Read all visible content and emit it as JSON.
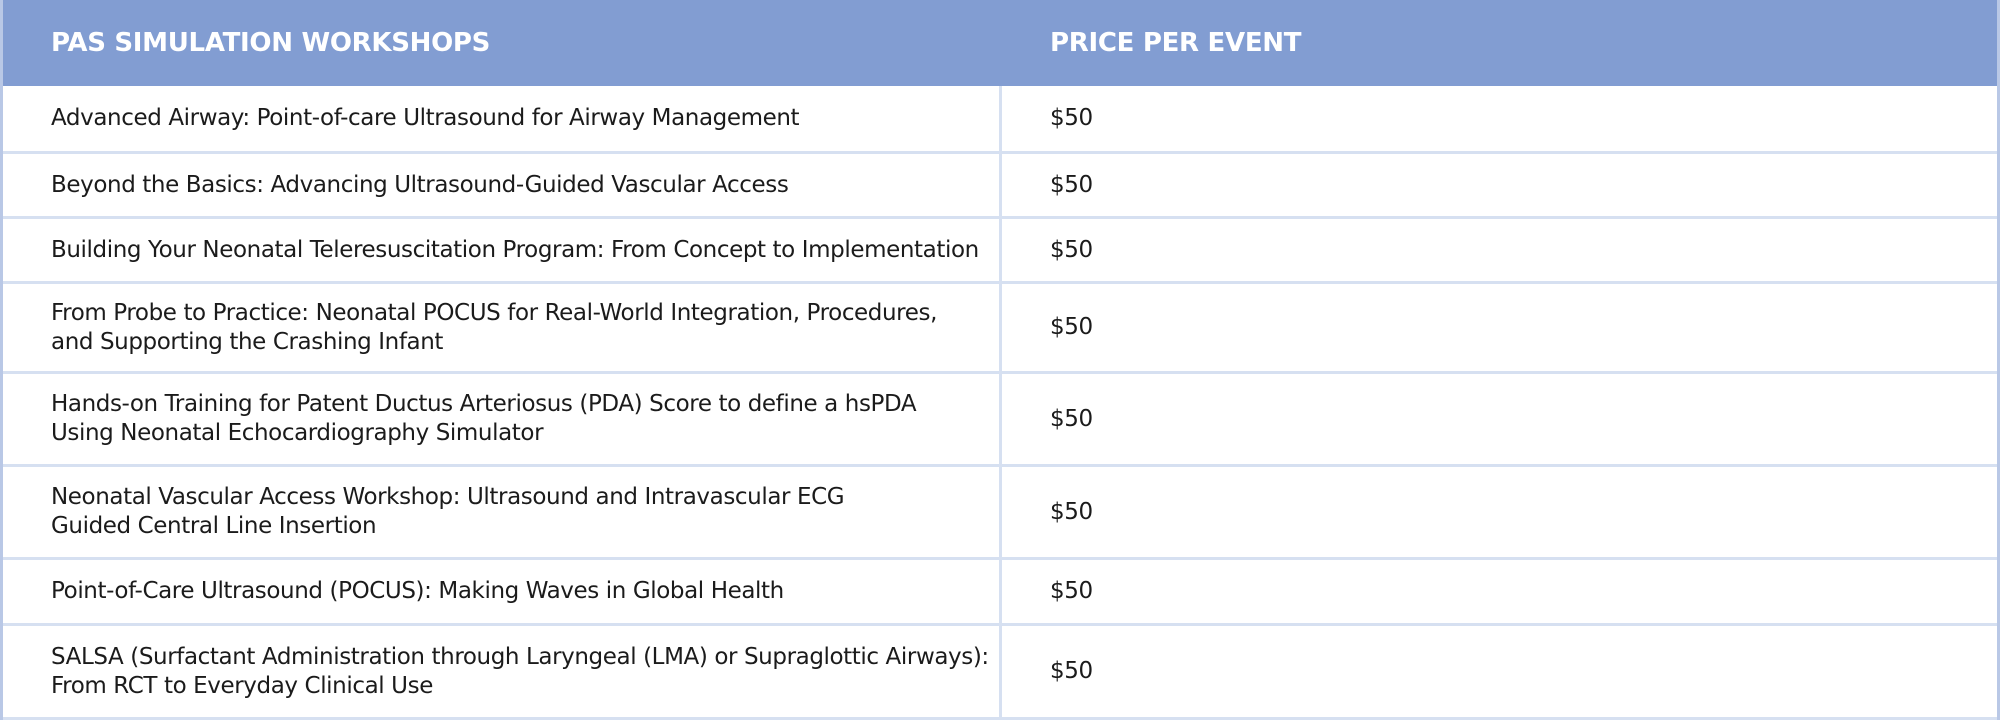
{
  "table": {
    "header": [
      "PAS SIMULATION WORKSHOPS",
      "PRICE PER EVENT"
    ],
    "rows": [
      {
        "workshop": [
          "Advanced Airway: Point-of-care Ultrasound for Airway Management"
        ],
        "price": "$50"
      },
      {
        "workshop": [
          "Beyond the Basics: Advancing Ultrasound-Guided Vascular Access"
        ],
        "price": "$50"
      },
      {
        "workshop": [
          "Building Your Neonatal Teleresuscitation Program: From Concept to Implementation"
        ],
        "price": "$50"
      },
      {
        "workshop": [
          "From Probe to Practice: Neonatal POCUS for Real-World Integration, Procedures,",
          "and Supporting the Crashing Infant"
        ],
        "price": "$50"
      },
      {
        "workshop": [
          "Hands-on Training for Patent Ductus Arteriosus (PDA) Score to define a hsPDA",
          "Using Neonatal Echocardiography Simulator"
        ],
        "price": "$50"
      },
      {
        "workshop": [
          "Neonatal Vascular Access Workshop: Ultrasound and Intravascular ECG",
          "Guided Central Line Insertion"
        ],
        "price": "$50"
      },
      {
        "workshop": [
          "Point-of-Care Ultrasound (POCUS): Making Waves in Global Health"
        ],
        "price": "$50"
      },
      {
        "workshop": [
          "SALSA (Surfactant Administration through Laryngeal (LMA) or Supraglottic Airways):",
          "From RCT to Everyday Clinical Use"
        ],
        "price": "$50"
      }
    ]
  }
}
